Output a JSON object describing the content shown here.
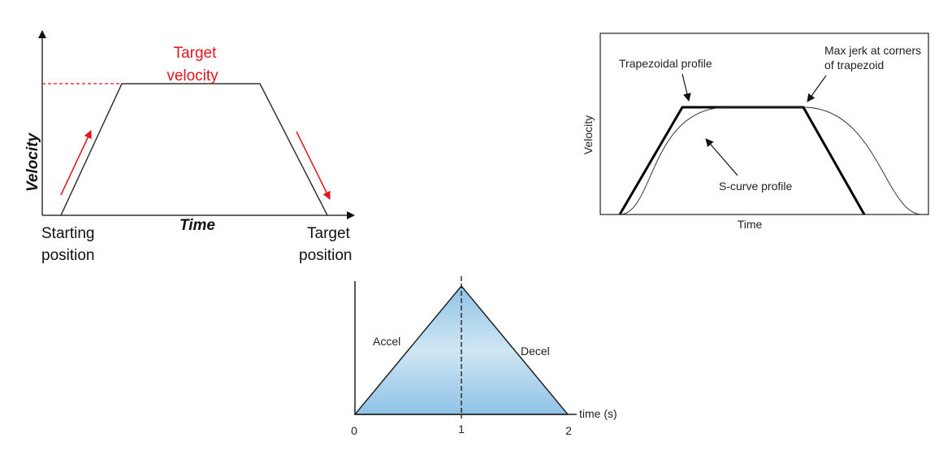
{
  "diagram1": {
    "target_velocity_line1": "Target",
    "target_velocity_line2": "velocity",
    "y_axis_label": "Velocity",
    "x_axis_label": "Time",
    "start_line1": "Starting",
    "start_line2": "position",
    "target_line1": "Target",
    "target_line2": "position",
    "colors": {
      "annotation": "#e8141b",
      "profile": "#333333"
    }
  },
  "diagram2": {
    "trapezoid_label": "Trapezoidal profile",
    "jerk_line1": "Max jerk at corners",
    "jerk_line2": "of trapezoid",
    "scurve_label": "S-curve profile",
    "y_axis_label": "Velocity",
    "x_axis_label": "Time"
  },
  "diagram3": {
    "accel_label": "Accel",
    "decel_label": "Decel",
    "x_axis_label": "time (s)",
    "ticks": [
      "0",
      "1",
      "2"
    ],
    "colors": {
      "fill_edge": "#8fc3e6",
      "fill_mid": "#cfe6f3"
    }
  }
}
